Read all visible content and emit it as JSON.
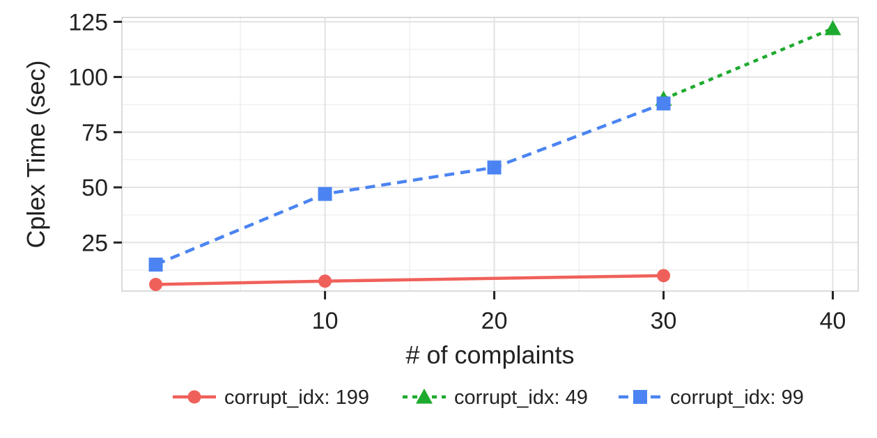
{
  "chart_data": {
    "type": "line",
    "xlabel": "# of complaints",
    "ylabel": "Cplex Time (sec)",
    "xlim": [
      -2,
      41.5
    ],
    "ylim": [
      3,
      127
    ],
    "x_ticks": [
      10,
      20,
      30,
      40
    ],
    "y_ticks": [
      25,
      50,
      75,
      100,
      125
    ],
    "x_minor_grid": [
      5,
      15,
      25,
      35
    ],
    "y_minor_grid": [
      12.5,
      37.5,
      62.5,
      87.5,
      112.5
    ],
    "grid": true,
    "legend_position": "bottom",
    "series": [
      {
        "name": "corrupt_idx: 199",
        "color": "#F0605A",
        "dash": "solid",
        "marker": "circle",
        "x": [
          0,
          10,
          30
        ],
        "y": [
          6,
          7.5,
          10
        ]
      },
      {
        "name": "corrupt_idx: 49",
        "color": "#1EAA2E",
        "dash": "dotted",
        "marker": "triangle",
        "x": [
          30,
          40
        ],
        "y": [
          90,
          122
        ]
      },
      {
        "name": "corrupt_idx: 99",
        "color": "#4B84F2",
        "dash": "dashed",
        "marker": "square",
        "x": [
          0,
          10,
          20,
          30
        ],
        "y": [
          15,
          47,
          59,
          88
        ]
      }
    ]
  }
}
